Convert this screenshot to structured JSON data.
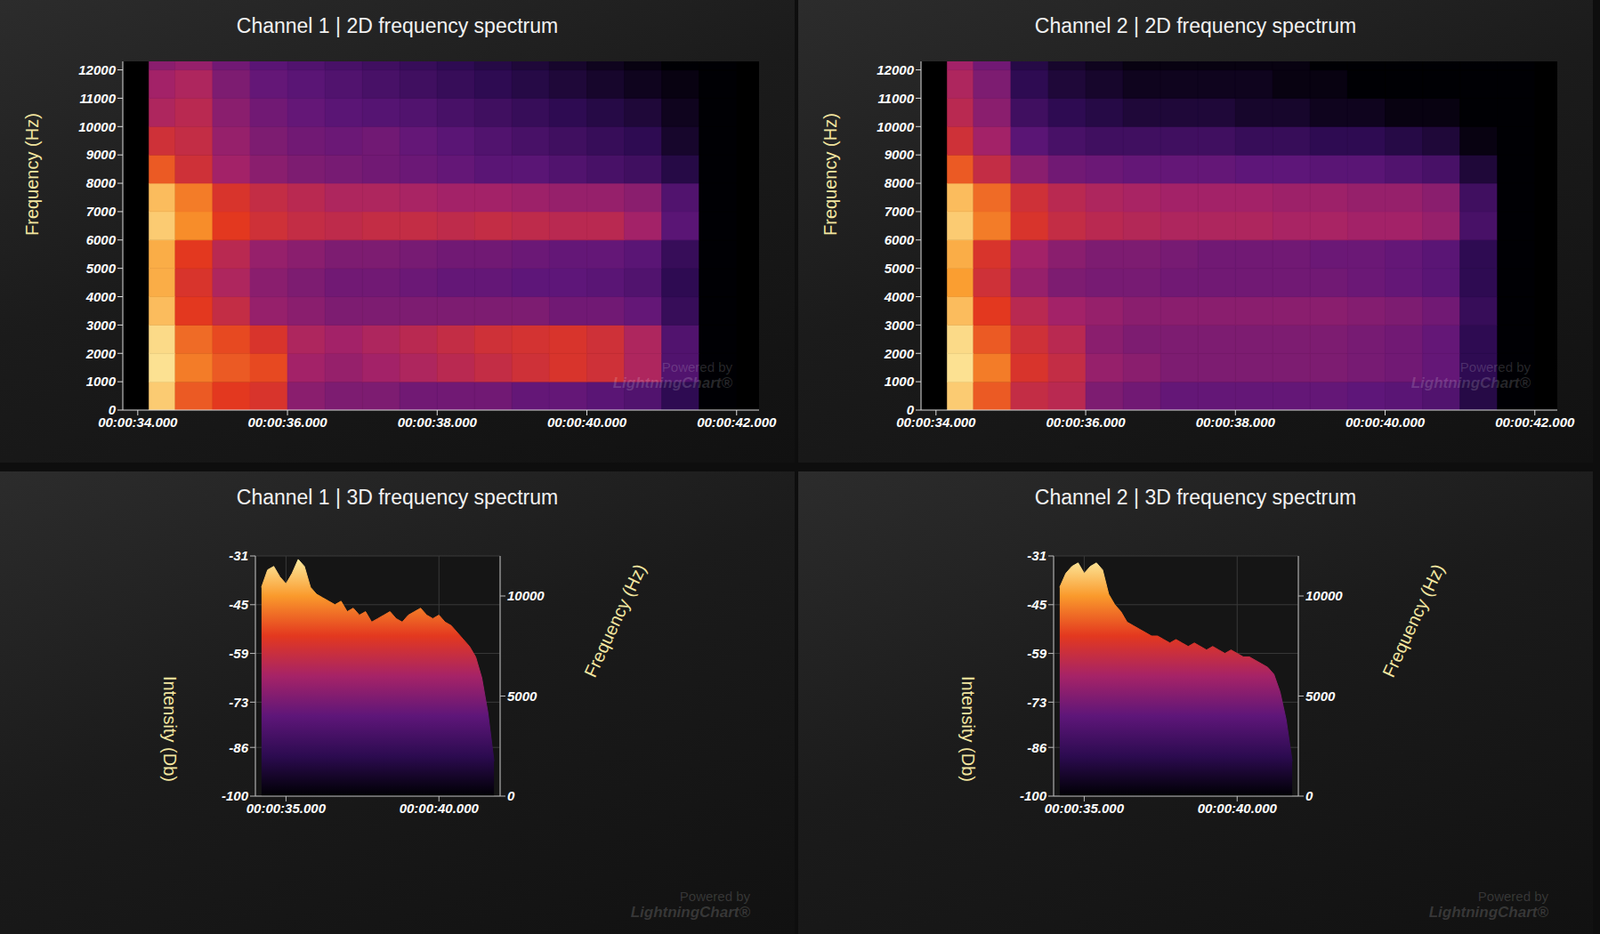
{
  "chart_data": [
    {
      "type": "heatmap",
      "title": "Channel 1 | 2D frequency spectrum",
      "y_label": "Frequency (Hz)",
      "annotations": [
        "Powered by",
        "LightningChart®"
      ],
      "x": [
        34.15,
        34.5,
        35,
        35.5,
        36,
        36.5,
        37,
        37.5,
        38,
        38.5,
        39,
        39.5,
        40,
        40.5,
        41,
        41.5,
        42
      ],
      "y": [
        0,
        1000,
        2000,
        3000,
        4000,
        5000,
        6000,
        7000,
        8000,
        9000,
        10000,
        11000,
        12000,
        13000
      ],
      "cells": [
        [
          -36,
          -50,
          -54,
          -56,
          -70,
          -72,
          -72,
          -74,
          -74,
          -74,
          -76,
          -76,
          -78,
          -80,
          -88,
          -100
        ],
        [
          -33,
          -46,
          -50,
          -52,
          -66,
          -68,
          -66,
          -64,
          -62,
          -60,
          -58,
          -56,
          -58,
          -64,
          -80,
          -100
        ],
        [
          -34,
          -48,
          -52,
          -56,
          -64,
          -66,
          -64,
          -62,
          -60,
          -58,
          -57,
          -56,
          -58,
          -64,
          -80,
          -100
        ],
        [
          -38,
          -54,
          -60,
          -68,
          -70,
          -72,
          -72,
          -72,
          -72,
          -72,
          -72,
          -74,
          -74,
          -76,
          -86,
          -100
        ],
        [
          -40,
          -56,
          -64,
          -70,
          -72,
          -74,
          -74,
          -75,
          -76,
          -76,
          -77,
          -77,
          -78,
          -80,
          -88,
          -100
        ],
        [
          -40,
          -54,
          -62,
          -68,
          -70,
          -72,
          -72,
          -73,
          -74,
          -74,
          -75,
          -76,
          -76,
          -78,
          -86,
          -100
        ],
        [
          -36,
          -44,
          -54,
          -58,
          -60,
          -61,
          -60,
          -60,
          -61,
          -60,
          -61,
          -62,
          -62,
          -66,
          -78,
          -100
        ],
        [
          -38,
          -46,
          -56,
          -60,
          -62,
          -64,
          -64,
          -65,
          -66,
          -66,
          -67,
          -68,
          -68,
          -70,
          -80,
          -100
        ],
        [
          -50,
          -58,
          -66,
          -70,
          -72,
          -73,
          -74,
          -75,
          -76,
          -78,
          -78,
          -80,
          -82,
          -84,
          -90,
          -100
        ],
        [
          -58,
          -60,
          -68,
          -72,
          -74,
          -75,
          -74,
          -76,
          -78,
          -80,
          -82,
          -84,
          -86,
          -88,
          -94,
          -100
        ],
        [
          -64,
          -62,
          -70,
          -74,
          -76,
          -78,
          -79,
          -80,
          -82,
          -84,
          -86,
          -88,
          -90,
          -92,
          -96,
          -100
        ],
        [
          -66,
          -64,
          -72,
          -76,
          -78,
          -80,
          -82,
          -84,
          -86,
          -88,
          -90,
          -92,
          -94,
          -96,
          -98,
          -100
        ],
        [
          -70,
          -68,
          -74,
          -78,
          -80,
          -82,
          -84,
          -86,
          -88,
          -90,
          -92,
          -94,
          -96,
          -98,
          -100,
          -100
        ]
      ],
      "color_range": [
        -100,
        -31
      ],
      "colors": [
        "#000004",
        "#2c0b50",
        "#5e1679",
        "#a62367",
        "#e3381f",
        "#fa9a2c",
        "#fcf0a8"
      ],
      "xlim": [
        33.8,
        42.3
      ],
      "xticks": [
        {
          "value": 34,
          "label": "00:00:34.000"
        },
        {
          "value": 36,
          "label": "00:00:36.000"
        },
        {
          "value": 38,
          "label": "00:00:38.000"
        },
        {
          "value": 40,
          "label": "00:00:40.000"
        },
        {
          "value": 42,
          "label": "00:00:42.000"
        }
      ],
      "ylim": [
        0,
        12300
      ],
      "yticks": [
        0,
        1000,
        2000,
        3000,
        4000,
        5000,
        6000,
        7000,
        8000,
        9000,
        10000,
        11000,
        12000
      ]
    },
    {
      "type": "heatmap",
      "title": "Channel 2 | 2D frequency spectrum",
      "y_label": "Frequency (Hz)",
      "annotations": [
        "Powered by",
        "LightningChart®"
      ],
      "x": [
        34.15,
        34.5,
        35,
        35.5,
        36,
        36.5,
        37,
        37.5,
        38,
        38.5,
        39,
        39.5,
        40,
        40.5,
        41,
        41.5,
        42
      ],
      "y": [
        0,
        1000,
        2000,
        3000,
        4000,
        5000,
        6000,
        7000,
        8000,
        9000,
        10000,
        11000,
        12000,
        13000
      ],
      "cells": [
        [
          -36,
          -50,
          -60,
          -62,
          -72,
          -74,
          -76,
          -76,
          -76,
          -76,
          -76,
          -77,
          -78,
          -80,
          -90,
          -100
        ],
        [
          -33,
          -46,
          -56,
          -60,
          -68,
          -70,
          -72,
          -72,
          -72,
          -72,
          -72,
          -73,
          -74,
          -76,
          -88,
          -100
        ],
        [
          -34,
          -50,
          -58,
          -62,
          -70,
          -72,
          -72,
          -72,
          -72,
          -72,
          -72,
          -73,
          -74,
          -76,
          -88,
          -100
        ],
        [
          -38,
          -54,
          -62,
          -66,
          -68,
          -70,
          -70,
          -70,
          -70,
          -70,
          -70,
          -71,
          -72,
          -74,
          -86,
          -100
        ],
        [
          -42,
          -58,
          -68,
          -72,
          -73,
          -73,
          -74,
          -74,
          -74,
          -74,
          -74,
          -75,
          -76,
          -78,
          -88,
          -100
        ],
        [
          -40,
          -56,
          -66,
          -70,
          -72,
          -72,
          -73,
          -74,
          -74,
          -74,
          -75,
          -75,
          -76,
          -78,
          -88,
          -100
        ],
        [
          -36,
          -46,
          -56,
          -60,
          -62,
          -63,
          -64,
          -64,
          -64,
          -65,
          -65,
          -66,
          -66,
          -68,
          -82,
          -100
        ],
        [
          -38,
          -48,
          -58,
          -62,
          -64,
          -65,
          -66,
          -66,
          -66,
          -67,
          -67,
          -68,
          -68,
          -70,
          -84,
          -100
        ],
        [
          -50,
          -60,
          -70,
          -74,
          -75,
          -76,
          -76,
          -76,
          -77,
          -77,
          -78,
          -78,
          -80,
          -82,
          -92,
          -100
        ],
        [
          -58,
          -66,
          -78,
          -82,
          -84,
          -84,
          -84,
          -84,
          -86,
          -86,
          -88,
          -88,
          -90,
          -92,
          -98,
          -100
        ],
        [
          -62,
          -70,
          -84,
          -88,
          -90,
          -92,
          -92,
          -92,
          -94,
          -94,
          -96,
          -96,
          -98,
          -98,
          -100,
          -100
        ],
        [
          -64,
          -72,
          -88,
          -92,
          -94,
          -96,
          -96,
          -96,
          -96,
          -98,
          -98,
          -100,
          -100,
          -100,
          -100,
          -100
        ],
        [
          -66,
          -74,
          -90,
          -94,
          -96,
          -98,
          -98,
          -98,
          -98,
          -98,
          -100,
          -100,
          -100,
          -100,
          -100,
          -100
        ]
      ],
      "color_range": [
        -100,
        -31
      ],
      "colors": [
        "#000004",
        "#2c0b50",
        "#5e1679",
        "#a62367",
        "#e3381f",
        "#fa9a2c",
        "#fcf0a8"
      ],
      "xlim": [
        33.8,
        42.3
      ],
      "xticks": [
        {
          "value": 34,
          "label": "00:00:34.000"
        },
        {
          "value": 36,
          "label": "00:00:36.000"
        },
        {
          "value": 38,
          "label": "00:00:38.000"
        },
        {
          "value": 40,
          "label": "00:00:40.000"
        },
        {
          "value": 42,
          "label": "00:00:42.000"
        }
      ],
      "ylim": [
        0,
        12300
      ],
      "yticks": [
        0,
        1000,
        2000,
        3000,
        4000,
        5000,
        6000,
        7000,
        8000,
        9000,
        10000,
        11000,
        12000
      ]
    },
    {
      "type": "area",
      "title": "Channel 1 | 3D frequency spectrum",
      "y_label": "Intensity (Db)",
      "z_label": "Frequency (Hz)",
      "annotations": [
        "Powered by",
        "LightningChart®"
      ],
      "x": [
        34.2,
        34.4,
        34.6,
        34.8,
        35.0,
        35.2,
        35.4,
        35.6,
        35.8,
        36.0,
        36.2,
        36.4,
        36.6,
        36.8,
        37.0,
        37.2,
        37.4,
        37.6,
        37.8,
        38.0,
        38.2,
        38.4,
        38.6,
        38.8,
        39.0,
        39.2,
        39.4,
        39.6,
        39.8,
        40.0,
        40.2,
        40.4,
        40.6,
        40.8,
        41.0,
        41.2,
        41.4,
        41.6,
        41.8
      ],
      "values": [
        -40,
        -35,
        -34,
        -37,
        -39,
        -36,
        -32,
        -34,
        -40,
        -42,
        -43,
        -44,
        -45,
        -44,
        -47,
        -46,
        -48,
        -47,
        -50,
        -49,
        -48,
        -47,
        -49,
        -50,
        -48,
        -47,
        -46,
        -48,
        -49,
        -48,
        -50,
        -51,
        -53,
        -55,
        -57,
        -60,
        -66,
        -76,
        -90
      ],
      "colors": [
        "#000004",
        "#2c0b50",
        "#5e1679",
        "#a62367",
        "#e3381f",
        "#fa9a2c",
        "#fcf0a8"
      ],
      "xlim": [
        34,
        42
      ],
      "xticks": [
        {
          "value": 35,
          "label": "00:00:35.000"
        },
        {
          "value": 40,
          "label": "00:00:40.000"
        }
      ],
      "ylim": [
        -100,
        -31
      ],
      "yticks": [
        -100,
        -86,
        -73,
        -59,
        -45,
        -31
      ],
      "zlim": [
        0,
        12000
      ],
      "zticks": [
        0,
        5000,
        10000
      ],
      "grid": true
    },
    {
      "type": "area",
      "title": "Channel 2 | 3D frequency spectrum",
      "y_label": "Intensity (Db)",
      "z_label": "Frequency (Hz)",
      "annotations": [
        "Powered by",
        "LightningChart®"
      ],
      "x": [
        34.2,
        34.4,
        34.6,
        34.8,
        35.0,
        35.2,
        35.4,
        35.6,
        35.8,
        36.0,
        36.2,
        36.4,
        36.6,
        36.8,
        37.0,
        37.2,
        37.4,
        37.6,
        37.8,
        38.0,
        38.2,
        38.4,
        38.6,
        38.8,
        39.0,
        39.2,
        39.4,
        39.6,
        39.8,
        40.0,
        40.2,
        40.4,
        40.6,
        40.8,
        41.0,
        41.2,
        41.4,
        41.6,
        41.8
      ],
      "values": [
        -40,
        -36,
        -34,
        -33,
        -36,
        -34,
        -33,
        -35,
        -42,
        -45,
        -47,
        -50,
        -51,
        -52,
        -53,
        -54,
        -54,
        -55,
        -56,
        -55,
        -56,
        -57,
        -56,
        -57,
        -58,
        -57,
        -58,
        -59,
        -58,
        -59,
        -60,
        -60,
        -61,
        -62,
        -63,
        -65,
        -70,
        -78,
        -90
      ],
      "colors": [
        "#000004",
        "#2c0b50",
        "#5e1679",
        "#a62367",
        "#e3381f",
        "#fa9a2c",
        "#fcf0a8"
      ],
      "xlim": [
        34,
        42
      ],
      "xticks": [
        {
          "value": 35,
          "label": "00:00:35.000"
        },
        {
          "value": 40,
          "label": "00:00:40.000"
        }
      ],
      "ylim": [
        -100,
        -31
      ],
      "yticks": [
        -100,
        -86,
        -73,
        -59,
        -45,
        -31
      ],
      "zlim": [
        0,
        12000
      ],
      "zticks": [
        0,
        5000,
        10000
      ],
      "grid": true
    }
  ]
}
